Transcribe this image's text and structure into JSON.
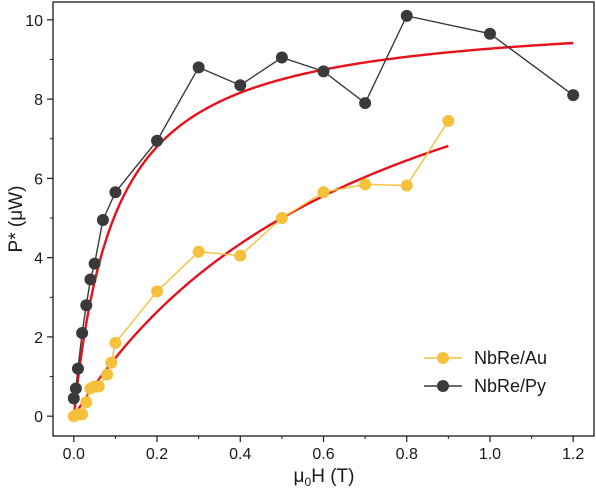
{
  "chart_data": {
    "type": "scatter",
    "xlabel_main": "μ",
    "xlabel_sub": "0",
    "xlabel_rest": "H (T)",
    "ylabel": "P* (μW)",
    "xlim": [
      -0.05,
      1.25
    ],
    "ylim": [
      -0.5,
      10.45
    ],
    "x_ticks": [
      0.0,
      0.2,
      0.4,
      0.6,
      0.8,
      1.0,
      1.2
    ],
    "x_tick_labels": [
      "0.0",
      "0.2",
      "0.4",
      "0.6",
      "0.8",
      "1.0",
      "1.2"
    ],
    "y_ticks": [
      0,
      2,
      4,
      6,
      8,
      10
    ],
    "y_tick_labels": [
      "0",
      "2",
      "4",
      "6",
      "8",
      "10"
    ],
    "legend_position": "bottom-right",
    "series": [
      {
        "name": "NbRe/Au",
        "color": "#f5c03a",
        "marker": "circle",
        "x": [
          0.0,
          0.01,
          0.02,
          0.03,
          0.04,
          0.05,
          0.06,
          0.08,
          0.09,
          0.1,
          0.2,
          0.3,
          0.4,
          0.5,
          0.6,
          0.7,
          0.8,
          0.9
        ],
        "y": [
          0.0,
          0.05,
          0.05,
          0.35,
          0.7,
          0.75,
          0.75,
          1.05,
          1.35,
          1.85,
          3.15,
          4.15,
          4.05,
          5.0,
          5.65,
          5.85,
          5.82,
          7.45
        ]
      },
      {
        "name": "NbRe/Py",
        "color": "#3a3a3a",
        "marker": "circle",
        "x": [
          0.0,
          0.005,
          0.01,
          0.02,
          0.03,
          0.04,
          0.05,
          0.07,
          0.1,
          0.2,
          0.3,
          0.4,
          0.5,
          0.6,
          0.7,
          0.8,
          1.0,
          1.2
        ],
        "y": [
          0.45,
          0.7,
          1.2,
          2.1,
          2.8,
          3.45,
          3.85,
          4.95,
          5.65,
          6.95,
          8.8,
          8.35,
          9.05,
          8.7,
          7.9,
          10.1,
          9.65,
          8.1
        ]
      }
    ],
    "fits": [
      {
        "for": "NbRe/Py",
        "color": "#e8101a",
        "x_range": [
          0.0,
          1.2
        ],
        "pmax": 10.2,
        "h0": 0.1
      },
      {
        "for": "NbRe/Au",
        "color": "#e8101a",
        "x_range": [
          0.0,
          0.9
        ],
        "pmax": 12.5,
        "h0": 0.75
      }
    ]
  }
}
